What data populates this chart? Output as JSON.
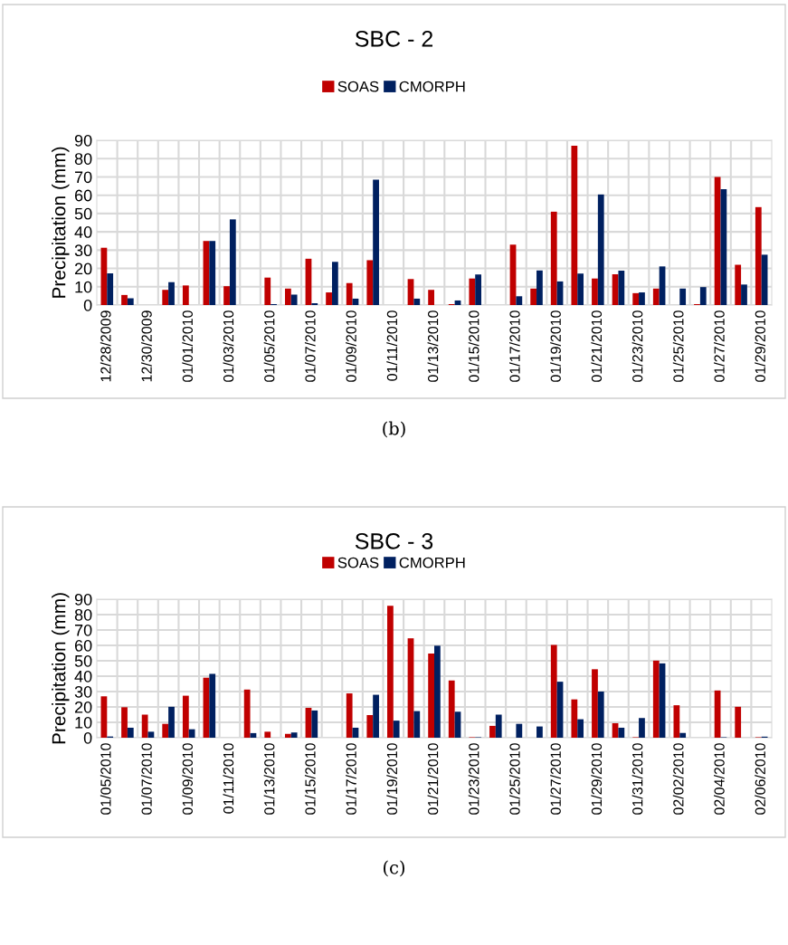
{
  "chart_data": [
    {
      "type": "bar",
      "title": "SBC - 2",
      "ylabel": "Precipitation (mm)",
      "legend": "top",
      "grid": true,
      "ylim": [
        0,
        90
      ],
      "yticks": [
        0,
        10,
        20,
        30,
        40,
        50,
        60,
        70,
        80,
        90
      ],
      "categories": [
        "12/28/2009",
        null,
        "12/30/2009",
        null,
        "01/01/2010",
        null,
        "01/03/2010",
        null,
        "01/05/2010",
        null,
        "01/07/2010",
        null,
        "01/09/2010",
        null,
        "01/11/2010",
        null,
        "01/13/2010",
        null,
        "01/15/2010",
        null,
        "01/17/2010",
        null,
        "01/19/2010",
        null,
        "01/21/2010",
        null,
        "01/23/2010",
        null,
        "01/25/2010",
        null,
        "01/27/2010",
        null,
        "01/29/2010"
      ],
      "series": [
        {
          "name": "SOAS",
          "color": "#c00000",
          "values": [
            31.3,
            5.5,
            0,
            8.3,
            10.7,
            35,
            10.3,
            0,
            15,
            9,
            25.3,
            6.9,
            12,
            24.5,
            0,
            14.2,
            8.3,
            0.5,
            14.5,
            0,
            33,
            9,
            51,
            87,
            14.5,
            16.8,
            6.5,
            9,
            0,
            0.5,
            70,
            22,
            53.5
          ]
        },
        {
          "name": "CMORPH",
          "color": "#002060",
          "values": [
            17.3,
            3.7,
            0,
            12.5,
            0,
            35,
            46.8,
            0,
            0.5,
            5.7,
            1,
            23.6,
            3.5,
            68.5,
            0,
            3.5,
            0,
            2.5,
            16.7,
            0,
            4.8,
            18.9,
            12.9,
            17.2,
            60.4,
            18.8,
            6.9,
            21.1,
            9,
            9.8,
            63.3,
            11.2,
            27.5
          ]
        }
      ],
      "annotations": [
        "(b)"
      ]
    },
    {
      "type": "bar",
      "title": "SBC - 3",
      "ylabel": "Precipitation (mm)",
      "legend": "top",
      "grid": true,
      "ylim": [
        0,
        90
      ],
      "yticks": [
        0,
        10,
        20,
        30,
        40,
        50,
        60,
        70,
        80,
        90
      ],
      "categories": [
        "01/05/2010",
        null,
        "01/07/2010",
        null,
        "01/09/2010",
        null,
        "01/11/2010",
        null,
        "01/13/2010",
        null,
        "01/15/2010",
        null,
        "01/17/2010",
        null,
        "01/19/2010",
        null,
        "01/21/2010",
        null,
        "01/23/2010",
        null,
        "01/25/2010",
        null,
        "01/27/2010",
        null,
        "01/29/2010",
        null,
        "01/31/2010",
        null,
        "02/02/2010",
        null,
        "02/04/2010",
        null,
        "02/06/2010"
      ],
      "series": [
        {
          "name": "SOAS",
          "color": "#c00000",
          "values": [
            26.9,
            19.8,
            15,
            9,
            27.3,
            39,
            0,
            31.3,
            3.9,
            2.5,
            19.4,
            0,
            28.8,
            14.7,
            85.8,
            64.6,
            54.7,
            37.2,
            0.3,
            7.7,
            0,
            0,
            60.3,
            24.9,
            44.5,
            9.4,
            0.3,
            50.1,
            21.1,
            0,
            30.7,
            20.1,
            0.3
          ]
        },
        {
          "name": "CMORPH",
          "color": "#002060",
          "values": [
            0.8,
            6.5,
            3.9,
            20.1,
            5.5,
            41.5,
            0,
            3,
            0,
            3.4,
            17.7,
            0,
            6.5,
            27.9,
            11.1,
            17.3,
            59.8,
            16.9,
            0.3,
            15,
            9,
            7.3,
            36.4,
            12,
            30,
            6.5,
            12.8,
            48.3,
            3.1,
            0,
            0.3,
            0,
            0.7
          ]
        }
      ],
      "annotations": [
        "(c)"
      ]
    }
  ]
}
